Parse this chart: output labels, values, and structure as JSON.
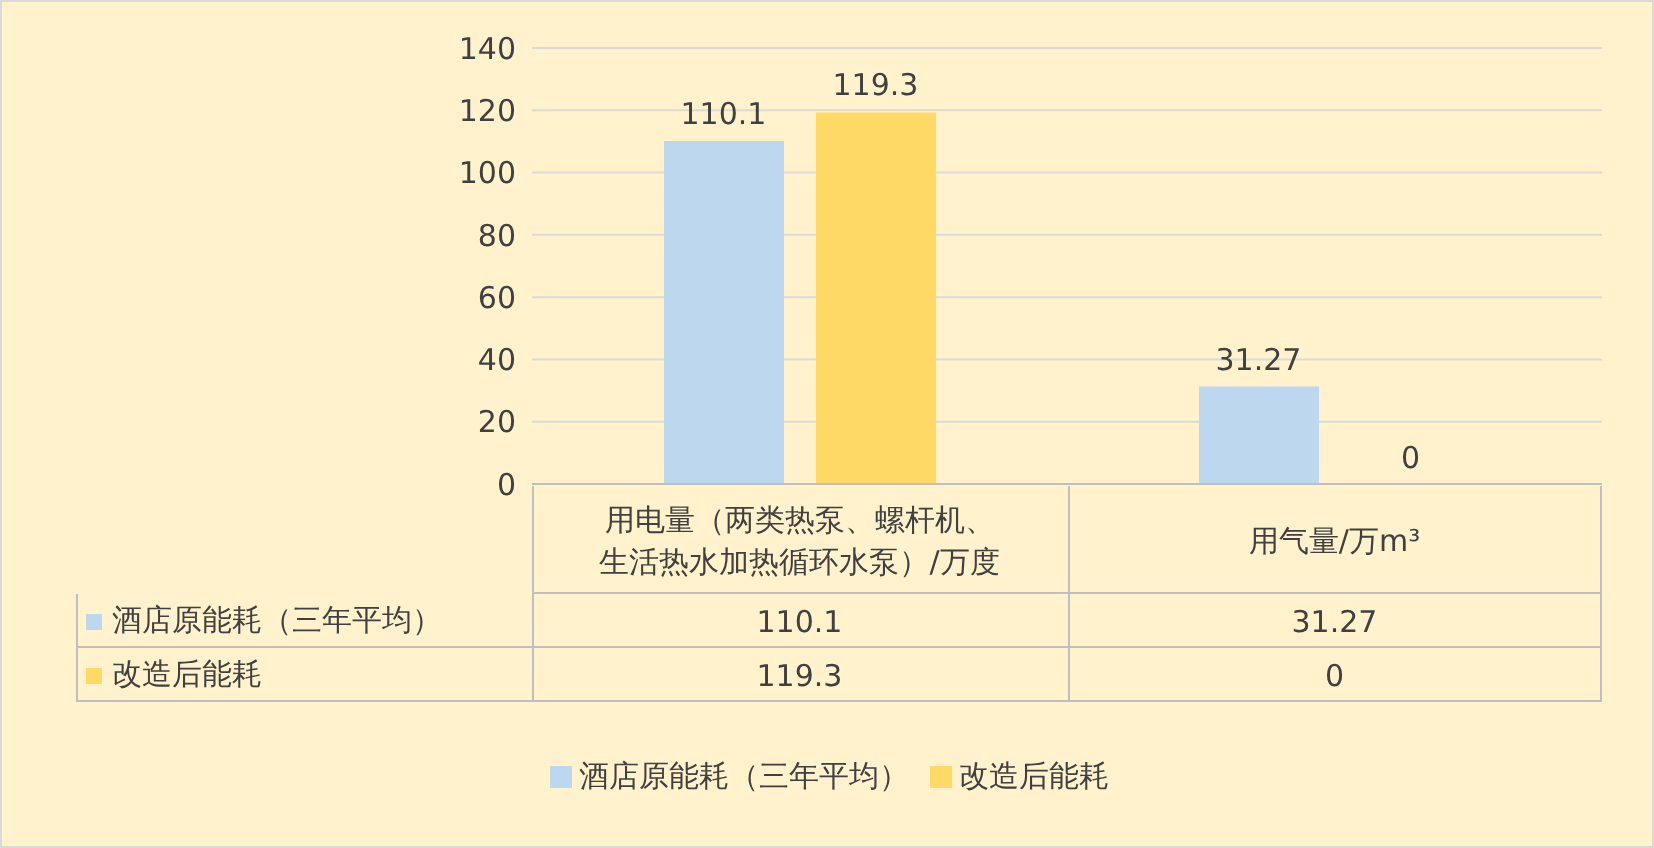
{
  "chart_data": {
    "type": "bar",
    "categories": [
      "用电量（两类热泵、螺杆机、生活热水加热循环水泵）/万度",
      "用气量/万m³"
    ],
    "series": [
      {
        "name": "酒店原能耗（三年平均）",
        "color": "#bdd7ee",
        "values": [
          110.1,
          31.27
        ],
        "value_labels": [
          "110.1",
          "31.27"
        ]
      },
      {
        "name": "改造后能耗",
        "color": "#ffd966",
        "values": [
          119.3,
          0
        ],
        "value_labels": [
          "119.3",
          "0"
        ]
      }
    ],
    "ylim": [
      0,
      140
    ],
    "yticks": [
      0,
      20,
      40,
      60,
      80,
      100,
      120,
      140
    ],
    "grid": "y",
    "legend": "bottom",
    "data_labels": true
  }
}
